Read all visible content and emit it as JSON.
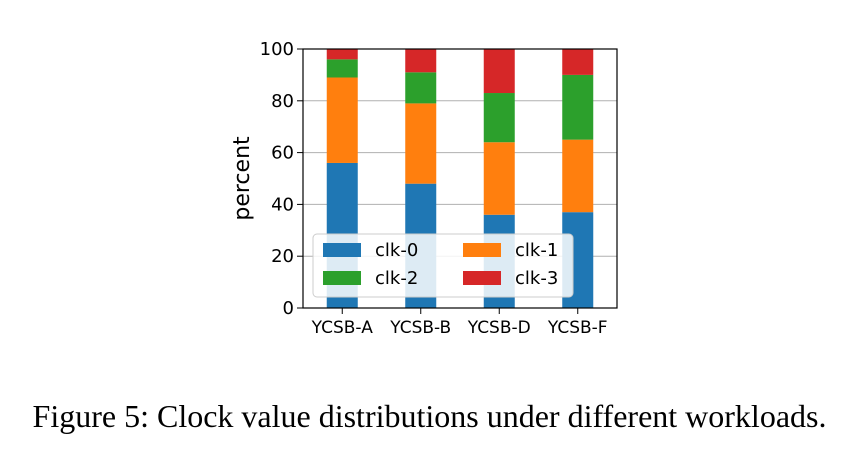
{
  "caption": "Figure 5: Clock value distributions under different workloads.",
  "chart_data": {
    "type": "bar",
    "stacked": true,
    "categories": [
      "YCSB-A",
      "YCSB-B",
      "YCSB-D",
      "YCSB-F"
    ],
    "series": [
      {
        "name": "clk-0",
        "color": "#1f77b4",
        "values": [
          56,
          48,
          36,
          37
        ]
      },
      {
        "name": "clk-1",
        "color": "#ff7f0e",
        "values": [
          33,
          31,
          28,
          28
        ]
      },
      {
        "name": "clk-2",
        "color": "#2ca02c",
        "values": [
          7,
          12,
          19,
          25
        ]
      },
      {
        "name": "clk-3",
        "color": "#d62728",
        "values": [
          4,
          9,
          17,
          10
        ]
      }
    ],
    "ylabel": "percent",
    "ylim": [
      0,
      100
    ],
    "yticks": [
      0,
      20,
      40,
      60,
      80,
      100
    ],
    "grid": "horizontal",
    "legend_position": "lower-center"
  }
}
